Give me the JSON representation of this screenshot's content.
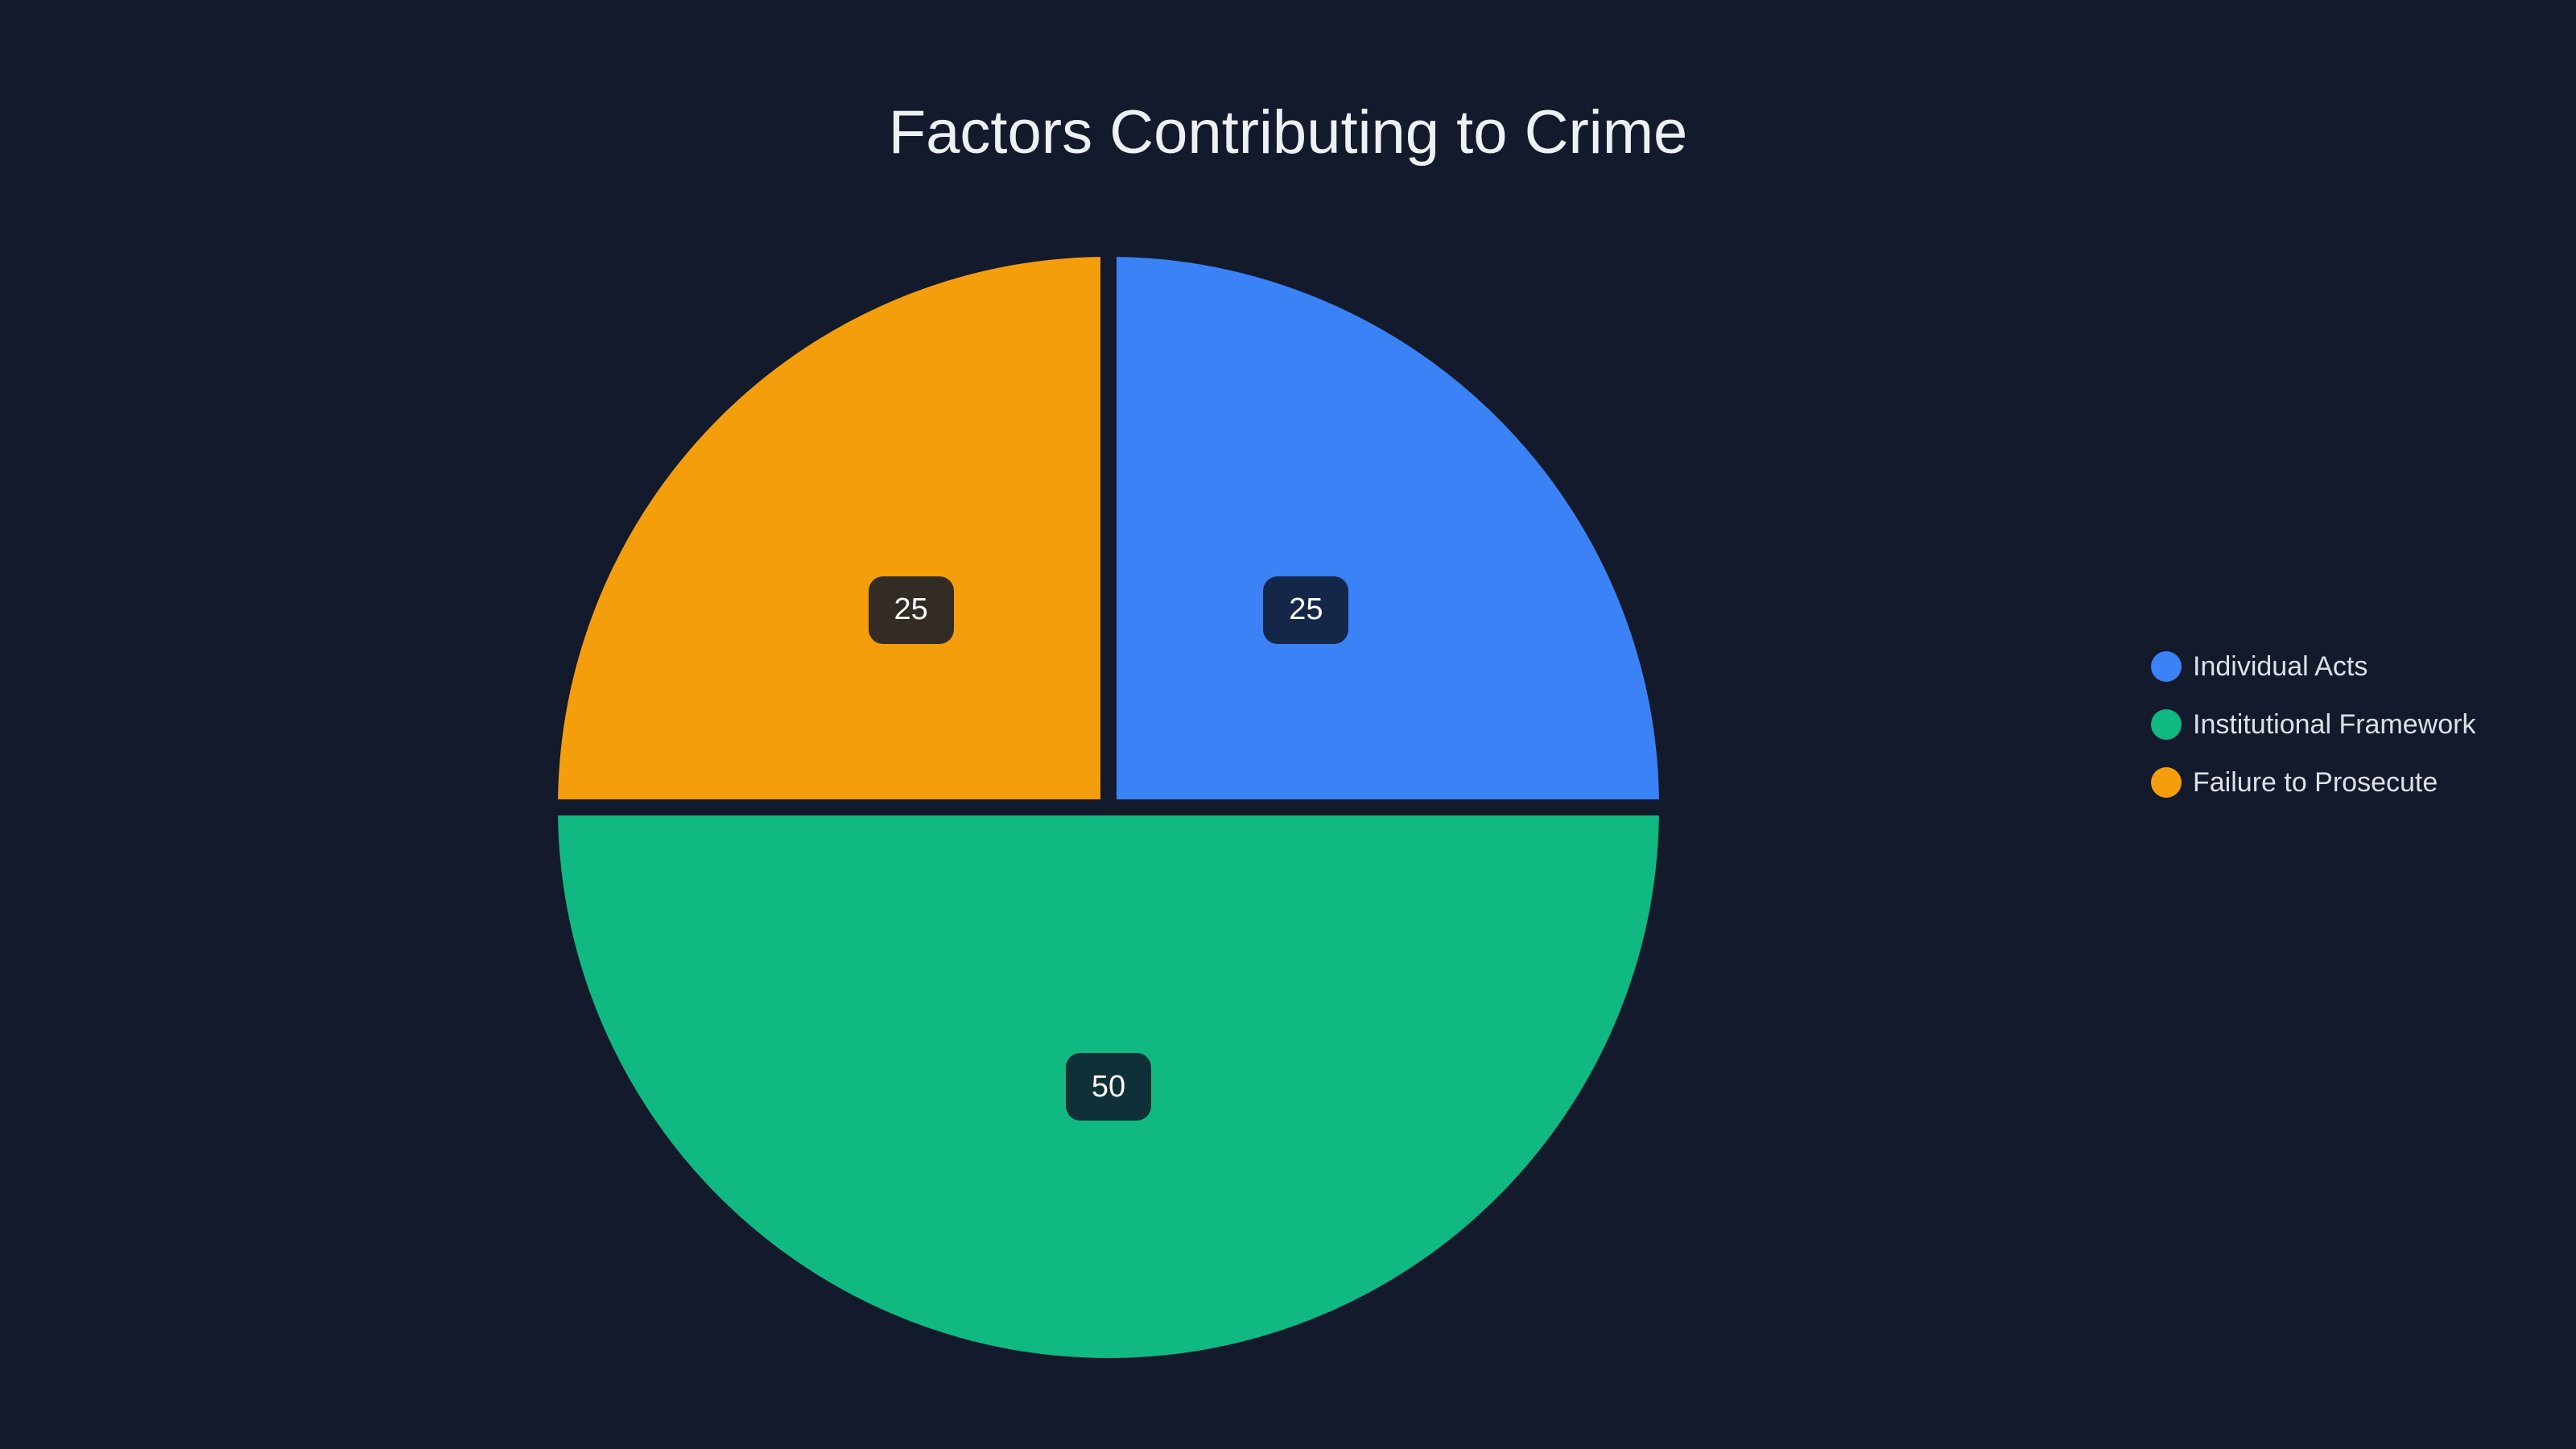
{
  "title": "Factors Contributing to Crime",
  "chart_data": {
    "type": "pie",
    "title": "Factors Contributing to Crime",
    "legend_position": "right",
    "start_angle": "top",
    "direction": "clockwise",
    "total": 100,
    "slices": [
      {
        "label": "Individual Acts",
        "value": 25,
        "color": "#3b82f6"
      },
      {
        "label": "Institutional Framework",
        "value": 50,
        "color": "#10b981"
      },
      {
        "label": "Failure to Prosecute",
        "value": 25,
        "color": "#f59e0b"
      }
    ]
  },
  "colors": {
    "background": "#121a2b",
    "title_text": "#eef1f4",
    "legend_text": "#dce1e9",
    "value_label_bg": "rgba(15,23,42,0.85)",
    "value_label_text": "#ffffff",
    "slice_border": "#121a2b"
  }
}
